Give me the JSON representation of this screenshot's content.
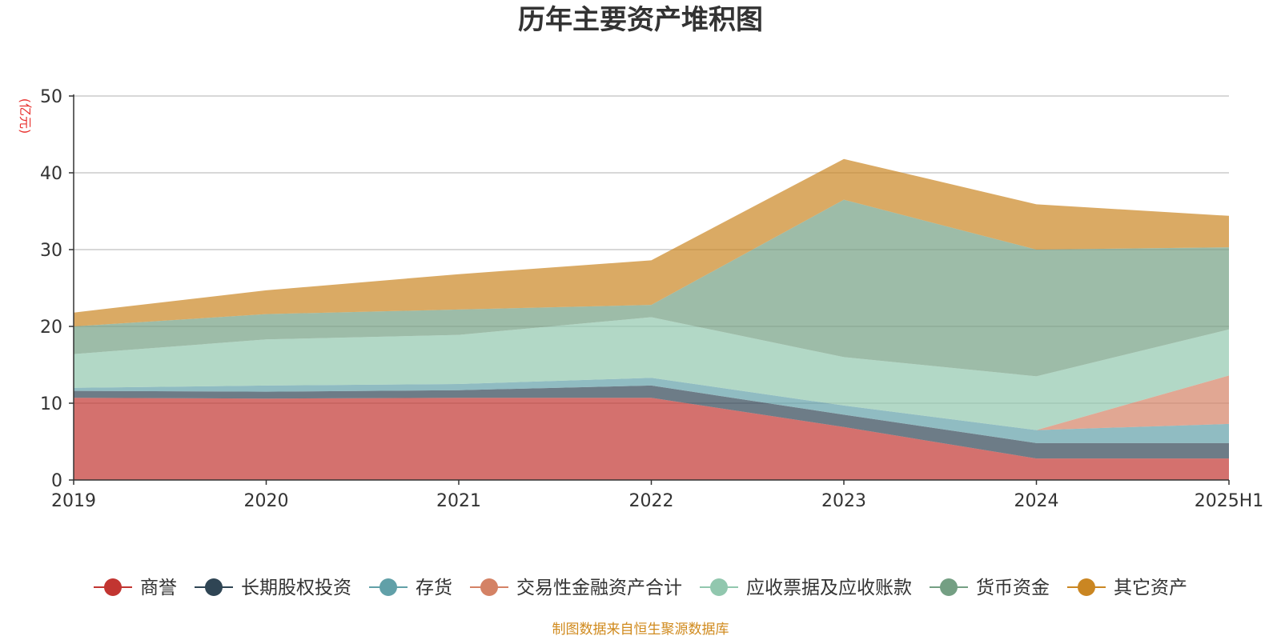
{
  "chart_data": {
    "type": "area",
    "stacked": true,
    "title": "历年主要资产堆积图",
    "ylabel": "(亿元)",
    "xlabel": "",
    "categories": [
      "2019",
      "2020",
      "2021",
      "2022",
      "2023",
      "2024",
      "2025H1"
    ],
    "ylim": [
      0,
      50
    ],
    "yticks": [
      0,
      10,
      20,
      30,
      40,
      50
    ],
    "grid": true,
    "legend_position": "bottom",
    "series": [
      {
        "name": "商誉",
        "color": "#c23531",
        "values": [
          10.7,
          10.6,
          10.7,
          10.7,
          6.9,
          2.8,
          2.8
        ]
      },
      {
        "name": "长期股权投资",
        "color": "#2f4554",
        "values": [
          0.9,
          0.9,
          1.0,
          1.6,
          1.6,
          2.0,
          2.0
        ]
      },
      {
        "name": "存货",
        "color": "#61a0a8",
        "values": [
          0.4,
          0.8,
          0.8,
          1.0,
          1.2,
          1.7,
          2.5
        ]
      },
      {
        "name": "交易性金融资产合计",
        "color": "#d48265",
        "values": [
          0.0,
          0.0,
          0.0,
          0.0,
          0.0,
          0.0,
          6.3
        ]
      },
      {
        "name": "应收票据及应收账款",
        "color": "#91c7ae",
        "values": [
          4.4,
          6.0,
          6.4,
          7.9,
          6.3,
          7.0,
          6.0
        ]
      },
      {
        "name": "货币资金",
        "color": "#749f83",
        "values": [
          3.6,
          3.3,
          3.3,
          1.6,
          20.5,
          16.5,
          10.7
        ]
      },
      {
        "name": "其它资产",
        "color": "#ca8622",
        "values": [
          1.8,
          3.1,
          4.6,
          5.8,
          5.3,
          5.9,
          4.1
        ]
      }
    ],
    "source": "制图数据来自恒生聚源数据库"
  }
}
